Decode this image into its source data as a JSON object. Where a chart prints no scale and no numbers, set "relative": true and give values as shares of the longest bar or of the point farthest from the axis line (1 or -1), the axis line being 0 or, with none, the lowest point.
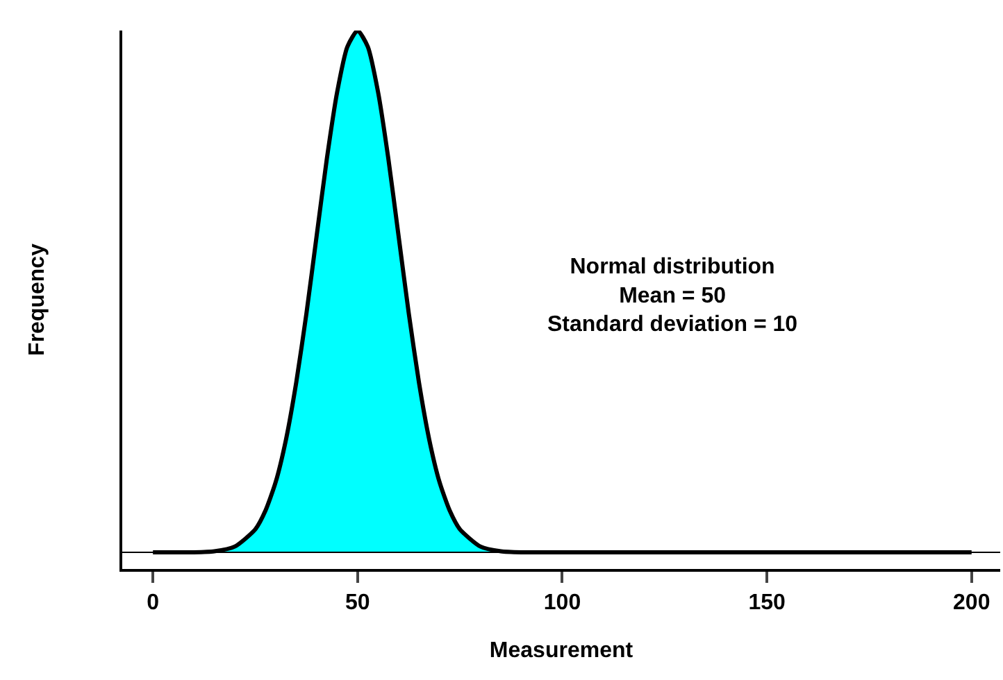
{
  "chart_data": {
    "type": "area",
    "relative": true,
    "xlabel": "Measurement",
    "ylabel": "Frequency",
    "x": [
      0,
      10,
      15,
      20,
      25,
      27.5,
      30,
      32.5,
      35,
      37.5,
      40,
      42.5,
      45,
      47.5,
      50,
      52.5,
      55,
      57.5,
      60,
      62.5,
      65,
      67.5,
      70,
      72.5,
      75,
      80,
      85,
      90,
      100,
      150,
      200
    ],
    "series": [
      {
        "color": "#00ffff",
        "values": [
          0,
          0,
          0.002,
          0.011,
          0.044,
          0.08,
          0.135,
          0.216,
          0.325,
          0.458,
          0.607,
          0.755,
          0.882,
          0.969,
          1,
          0.969,
          0.882,
          0.755,
          0.607,
          0.458,
          0.325,
          0.216,
          0.135,
          0.08,
          0.044,
          0.011,
          0.002,
          0,
          0,
          0,
          0
        ]
      }
    ],
    "xlim": [
      -7.5,
      207
    ],
    "xticks": [
      0,
      50,
      100,
      150,
      200
    ],
    "ref_lines": [
      {
        "axis": "y",
        "value": 0
      }
    ],
    "annotations": [
      "Normal distribution\nMean = 50\nStandard deviation = 10"
    ],
    "grid": false,
    "marker": "none",
    "line_style": "solid"
  }
}
